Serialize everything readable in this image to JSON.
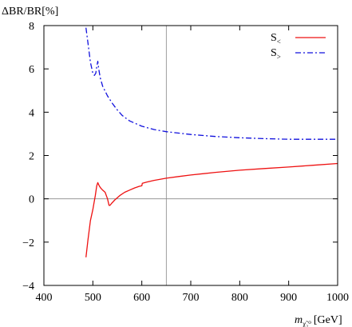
{
  "chart_data": {
    "type": "line",
    "title": "",
    "ylabel": "ΔBR/BR[%]",
    "xlabel": {
      "base": "m",
      "sub": "χ̃₂⁰",
      "unit": "[GeV]"
    },
    "xlim": [
      400,
      1000
    ],
    "ylim": [
      -4,
      8
    ],
    "x_ticks": [
      400,
      500,
      600,
      700,
      800,
      900,
      1000
    ],
    "y_ticks": [
      -4,
      -2,
      0,
      2,
      4,
      6,
      8
    ],
    "x_tick_labels": [
      "400",
      "500",
      "600",
      "700",
      "800",
      "900",
      "1000"
    ],
    "y_tick_labels": [
      "−4",
      "−2",
      "0",
      "2",
      "4",
      "6",
      "8"
    ],
    "reference_lines": {
      "horizontal_y": 0,
      "vertical_x": 650
    },
    "legend_position": "top-right",
    "series": [
      {
        "name": "S<",
        "legend_base": "S",
        "legend_sub": "<",
        "color": "#ee1111",
        "dash": "solid",
        "points": [
          [
            486,
            -2.7
          ],
          [
            490,
            -1.9
          ],
          [
            495,
            -1.0
          ],
          [
            500,
            -0.5
          ],
          [
            505,
            0.15
          ],
          [
            508,
            0.6
          ],
          [
            510,
            0.75
          ],
          [
            513,
            0.6
          ],
          [
            516,
            0.5
          ],
          [
            520,
            0.4
          ],
          [
            525,
            0.3
          ],
          [
            530,
            0.0
          ],
          [
            533,
            -0.3
          ],
          [
            535,
            -0.3
          ],
          [
            538,
            -0.22
          ],
          [
            545,
            -0.05
          ],
          [
            555,
            0.15
          ],
          [
            565,
            0.3
          ],
          [
            575,
            0.4
          ],
          [
            585,
            0.5
          ],
          [
            595,
            0.58
          ],
          [
            600,
            0.6
          ],
          [
            601,
            0.72
          ],
          [
            610,
            0.77
          ],
          [
            625,
            0.85
          ],
          [
            650,
            0.95
          ],
          [
            675,
            1.03
          ],
          [
            700,
            1.1
          ],
          [
            750,
            1.22
          ],
          [
            800,
            1.32
          ],
          [
            850,
            1.4
          ],
          [
            900,
            1.47
          ],
          [
            950,
            1.55
          ],
          [
            1000,
            1.63
          ]
        ]
      },
      {
        "name": "S>",
        "legend_base": "S",
        "legend_sub": ">",
        "color": "#1111dd",
        "dash": "dash-dot",
        "points": [
          [
            486,
            7.9
          ],
          [
            490,
            7.2
          ],
          [
            495,
            6.3
          ],
          [
            500,
            5.8
          ],
          [
            503,
            5.7
          ],
          [
            506,
            5.8
          ],
          [
            508,
            6.1
          ],
          [
            510,
            6.35
          ],
          [
            512,
            6.0
          ],
          [
            515,
            5.6
          ],
          [
            520,
            5.2
          ],
          [
            530,
            4.75
          ],
          [
            540,
            4.4
          ],
          [
            550,
            4.1
          ],
          [
            560,
            3.85
          ],
          [
            575,
            3.6
          ],
          [
            600,
            3.35
          ],
          [
            625,
            3.2
          ],
          [
            650,
            3.1
          ],
          [
            700,
            2.97
          ],
          [
            750,
            2.88
          ],
          [
            800,
            2.82
          ],
          [
            850,
            2.78
          ],
          [
            900,
            2.75
          ],
          [
            950,
            2.75
          ],
          [
            1000,
            2.75
          ]
        ]
      }
    ]
  }
}
